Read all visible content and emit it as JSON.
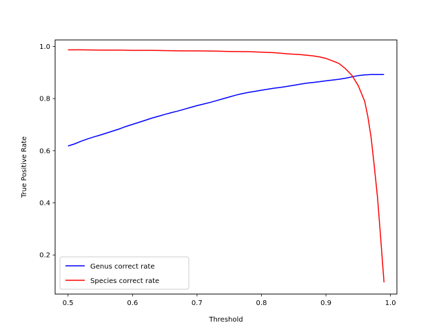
{
  "chart_data": {
    "type": "line",
    "xlabel": "Threshold",
    "ylabel": "True Positive Rate",
    "xlim": [
      0.48,
      1.01
    ],
    "ylim": [
      0.05,
      1.025
    ],
    "xticks": [
      0.5,
      0.6,
      0.7,
      0.8,
      0.9,
      1.0
    ],
    "xtick_labels": [
      "0.5",
      "0.6",
      "0.7",
      "0.8",
      "0.9",
      "1.0"
    ],
    "yticks": [
      0.2,
      0.4,
      0.6,
      0.8,
      1.0
    ],
    "ytick_labels": [
      "0.2",
      "0.4",
      "0.6",
      "0.8",
      "1.0"
    ],
    "grid": false,
    "legend_position": "lower-left",
    "series": [
      {
        "name": "Genus correct rate",
        "color": "#0000ff",
        "x": [
          0.5,
          0.51,
          0.52,
          0.53,
          0.54,
          0.55,
          0.56,
          0.57,
          0.58,
          0.59,
          0.6,
          0.61,
          0.62,
          0.63,
          0.64,
          0.65,
          0.66,
          0.67,
          0.68,
          0.69,
          0.7,
          0.71,
          0.72,
          0.73,
          0.74,
          0.75,
          0.76,
          0.77,
          0.78,
          0.79,
          0.8,
          0.81,
          0.82,
          0.83,
          0.84,
          0.85,
          0.86,
          0.87,
          0.88,
          0.89,
          0.9,
          0.91,
          0.92,
          0.93,
          0.94,
          0.95,
          0.96,
          0.97,
          0.98,
          0.99
        ],
        "y": [
          0.618,
          0.626,
          0.636,
          0.645,
          0.653,
          0.66,
          0.668,
          0.676,
          0.684,
          0.693,
          0.701,
          0.709,
          0.717,
          0.725,
          0.732,
          0.739,
          0.746,
          0.752,
          0.759,
          0.766,
          0.773,
          0.779,
          0.785,
          0.792,
          0.799,
          0.806,
          0.813,
          0.819,
          0.824,
          0.828,
          0.832,
          0.836,
          0.84,
          0.843,
          0.847,
          0.851,
          0.855,
          0.859,
          0.862,
          0.865,
          0.868,
          0.871,
          0.874,
          0.878,
          0.883,
          0.888,
          0.891,
          0.892,
          0.892,
          0.892
        ]
      },
      {
        "name": "Species correct rate",
        "color": "#ff0000",
        "x": [
          0.5,
          0.52,
          0.55,
          0.58,
          0.6,
          0.63,
          0.65,
          0.68,
          0.7,
          0.73,
          0.75,
          0.78,
          0.8,
          0.82,
          0.84,
          0.86,
          0.88,
          0.89,
          0.9,
          0.91,
          0.92,
          0.93,
          0.94,
          0.95,
          0.96,
          0.965,
          0.97,
          0.975,
          0.98,
          0.985,
          0.99
        ],
        "y": [
          0.987,
          0.987,
          0.986,
          0.986,
          0.985,
          0.985,
          0.984,
          0.983,
          0.983,
          0.982,
          0.981,
          0.98,
          0.978,
          0.976,
          0.972,
          0.969,
          0.964,
          0.96,
          0.954,
          0.945,
          0.935,
          0.915,
          0.89,
          0.85,
          0.79,
          0.73,
          0.65,
          0.54,
          0.42,
          0.26,
          0.095
        ]
      }
    ]
  }
}
